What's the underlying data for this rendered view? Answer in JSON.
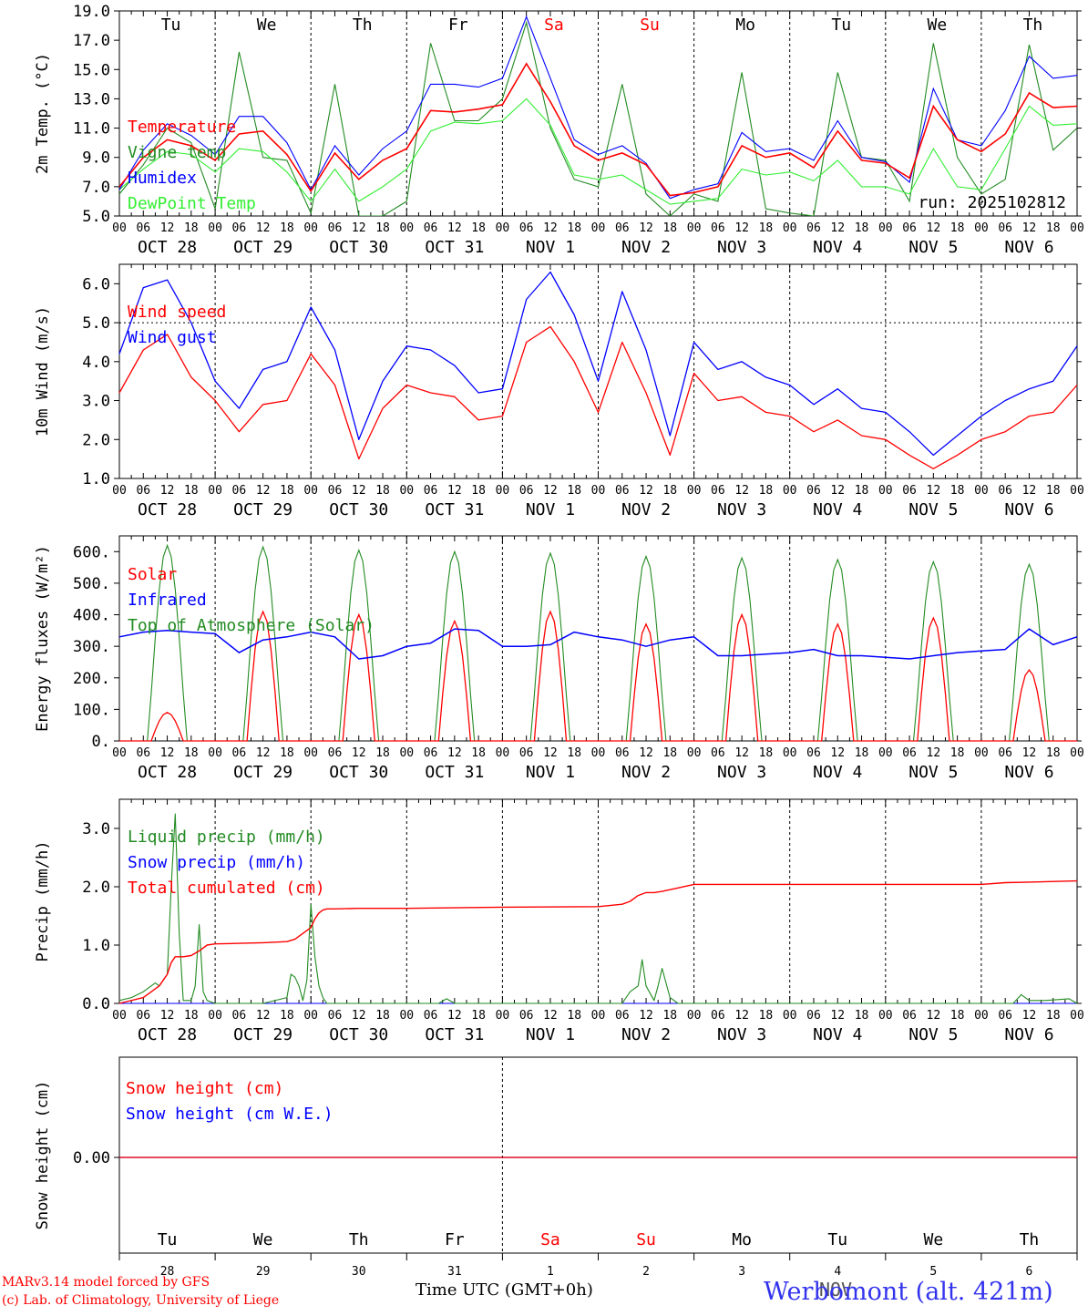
{
  "colors": {
    "red": "#ff0000",
    "green": "#228b22",
    "blue": "#0000ff",
    "lightgreen": "#33ee33",
    "axis": "#000000"
  },
  "days": [
    "Tu",
    "We",
    "Th",
    "Fr",
    "Sa",
    "Su",
    "Mo",
    "Tu",
    "We",
    "Th"
  ],
  "weekend_flags": [
    false,
    false,
    false,
    false,
    true,
    true,
    false,
    false,
    false,
    false
  ],
  "date_labels": [
    "OCT 28",
    "OCT 29",
    "OCT 30",
    "OCT 31",
    "NOV  1",
    "NOV  2",
    "NOV  3",
    "NOV  4",
    "NOV  5",
    "NOV  6"
  ],
  "hour_labels": [
    "00",
    "06",
    "12",
    "18"
  ],
  "end_hour_label": "00",
  "bottom_day_numbers": [
    "28",
    "29",
    "30",
    "31",
    "1",
    "2",
    "3",
    "4",
    "5",
    "6"
  ],
  "bottom_month_label": "NOV",
  "footer": {
    "model": "MARv3.14 model forced by GFS",
    "lab": "(c) Lab. of Climatology, University of Liege",
    "time_axis": "Time UTC (GMT+0h)",
    "station": "Werbomont (alt. 421m)"
  },
  "chart_data": [
    {
      "type": "line",
      "ylabel": "2m Temp. (°C)",
      "ylim": [
        5,
        19
      ],
      "yticks": [
        "19.0",
        "17.0",
        "15.0",
        "13.0",
        "11.0",
        "9.0",
        "7.0",
        "5.0"
      ],
      "ytick_values": [
        19,
        17,
        15,
        13,
        11,
        9,
        7,
        5
      ],
      "run_label": "run: 2025102812",
      "x_hours": [
        0,
        6,
        12,
        18,
        24,
        30,
        36,
        42,
        48,
        54,
        60,
        66,
        72,
        78,
        84,
        90,
        96,
        102,
        108,
        114,
        120,
        126,
        132,
        138,
        144,
        150,
        156,
        162,
        168,
        174,
        180,
        186,
        192,
        198,
        204,
        210,
        216,
        222,
        228,
        234,
        240
      ],
      "series": [
        {
          "name": "Temperature",
          "color": "#ff0000",
          "values": [
            7.0,
            9.0,
            10.2,
            9.8,
            8.8,
            10.6,
            10.8,
            9.2,
            6.7,
            9.3,
            7.5,
            8.8,
            9.6,
            12.2,
            12.1,
            12.3,
            12.6,
            15.4,
            12.8,
            9.8,
            8.8,
            9.3,
            8.5,
            6.4,
            6.6,
            7.0,
            9.8,
            9.0,
            9.3,
            8.3,
            10.8,
            8.8,
            8.6,
            7.6,
            12.5,
            10.2,
            9.4,
            10.6,
            13.4,
            12.4,
            12.5
          ]
        },
        {
          "name": "Vigne temp",
          "color": "#228b22",
          "values": [
            6.5,
            8.5,
            11.0,
            10.0,
            5.5,
            16.2,
            9.0,
            8.8,
            5.2,
            14.0,
            5.0,
            5.0,
            6.0,
            16.8,
            11.5,
            11.5,
            13.0,
            18.2,
            11.0,
            7.5,
            7.0,
            14.0,
            6.5,
            5.0,
            6.5,
            6.0,
            14.8,
            5.5,
            5.2,
            5.0,
            14.8,
            9.0,
            8.8,
            6.0,
            16.8,
            9.0,
            6.5,
            7.5,
            16.7,
            9.5,
            11.0
          ]
        },
        {
          "name": "Humidex",
          "color": "#0000ff",
          "values": [
            6.8,
            9.5,
            11.3,
            10.5,
            9.2,
            11.8,
            11.8,
            10.0,
            6.8,
            9.8,
            7.8,
            9.6,
            10.8,
            14.0,
            14.0,
            13.8,
            14.4,
            18.6,
            14.4,
            10.2,
            9.2,
            9.8,
            8.6,
            6.2,
            6.8,
            7.2,
            10.7,
            9.4,
            9.6,
            8.8,
            11.5,
            9.0,
            8.7,
            7.3,
            13.7,
            10.2,
            9.8,
            12.2,
            15.9,
            14.4,
            14.6
          ]
        },
        {
          "name": "DewPoint Temp",
          "color": "#33ee33",
          "values": [
            6.8,
            8.2,
            9.4,
            9.2,
            8.0,
            9.6,
            9.4,
            8.0,
            6.0,
            8.2,
            6.0,
            7.0,
            8.2,
            10.8,
            11.4,
            11.3,
            11.5,
            13.0,
            11.2,
            7.8,
            7.5,
            7.8,
            6.8,
            5.8,
            6.0,
            6.2,
            8.2,
            7.8,
            8.0,
            7.4,
            8.8,
            7.0,
            7.0,
            6.5,
            9.6,
            7.0,
            6.8,
            9.6,
            12.5,
            11.2,
            11.3
          ]
        }
      ]
    },
    {
      "type": "line",
      "ylabel": "10m Wind (m/s)",
      "ylim": [
        1,
        6.5
      ],
      "yticks": [
        "6.0",
        "5.0",
        "4.0",
        "3.0",
        "2.0",
        "1.0"
      ],
      "ytick_values": [
        6,
        5,
        4,
        3,
        2,
        1
      ],
      "reference_line": 5.0,
      "x_hours": [
        0,
        6,
        12,
        18,
        24,
        30,
        36,
        42,
        48,
        54,
        60,
        66,
        72,
        78,
        84,
        90,
        96,
        102,
        108,
        114,
        120,
        126,
        132,
        138,
        144,
        150,
        156,
        162,
        168,
        174,
        180,
        186,
        192,
        198,
        204,
        210,
        216,
        222,
        228,
        234,
        240
      ],
      "series": [
        {
          "name": "Wind speed",
          "color": "#ff0000",
          "values": [
            3.2,
            4.3,
            4.7,
            3.6,
            3.0,
            2.2,
            2.9,
            3.0,
            4.2,
            3.4,
            1.5,
            2.8,
            3.4,
            3.2,
            3.1,
            2.5,
            2.6,
            4.5,
            4.9,
            4.0,
            2.7,
            4.5,
            3.2,
            1.6,
            3.7,
            3.0,
            3.1,
            2.7,
            2.6,
            2.2,
            2.5,
            2.1,
            2.0,
            1.6,
            1.25,
            1.6,
            2.0,
            2.2,
            2.6,
            2.7,
            3.4
          ]
        },
        {
          "name": "Wind gust",
          "color": "#0000ff",
          "values": [
            4.2,
            5.9,
            6.1,
            5.0,
            3.5,
            2.8,
            3.8,
            4.0,
            5.4,
            4.3,
            2.0,
            3.5,
            4.4,
            4.3,
            3.9,
            3.2,
            3.3,
            5.6,
            6.3,
            5.2,
            3.5,
            5.8,
            4.3,
            2.1,
            4.5,
            3.8,
            4.0,
            3.6,
            3.4,
            2.9,
            3.3,
            2.8,
            2.7,
            2.2,
            1.6,
            2.1,
            2.6,
            3.0,
            3.3,
            3.5,
            4.4
          ]
        }
      ]
    },
    {
      "type": "line",
      "ylabel": "Energy fluxes (W/m²)",
      "ylim": [
        0,
        650
      ],
      "yticks": [
        "600.",
        "500.",
        "400.",
        "300.",
        "200.",
        "100.",
        "0."
      ],
      "ytick_values": [
        600,
        500,
        400,
        300,
        200,
        100,
        0
      ],
      "daily_toa_peaks": [
        620,
        615,
        605,
        600,
        595,
        585,
        580,
        575,
        568,
        560
      ],
      "daily_solar_peaks": [
        90,
        410,
        400,
        380,
        410,
        370,
        400,
        370,
        390,
        225
      ],
      "series": [
        {
          "name": "Solar",
          "color": "#ff0000"
        },
        {
          "name": "Infrared",
          "color": "#0000ff",
          "x_hours": [
            0,
            6,
            12,
            18,
            24,
            30,
            36,
            42,
            48,
            54,
            60,
            66,
            72,
            78,
            84,
            90,
            96,
            102,
            108,
            114,
            120,
            126,
            132,
            138,
            144,
            150,
            156,
            162,
            168,
            174,
            180,
            186,
            192,
            198,
            204,
            210,
            216,
            222,
            228,
            234,
            240
          ],
          "values": [
            330,
            345,
            350,
            345,
            340,
            280,
            320,
            330,
            345,
            330,
            260,
            270,
            300,
            310,
            355,
            350,
            300,
            300,
            305,
            345,
            330,
            320,
            300,
            320,
            330,
            270,
            270,
            275,
            280,
            290,
            270,
            270,
            265,
            260,
            270,
            280,
            285,
            290,
            355,
            305,
            330
          ]
        },
        {
          "name": "Top of Atmosphere (Solar)",
          "color": "#228b22"
        }
      ]
    },
    {
      "type": "line",
      "ylabel": "Precip (mm/h)",
      "ylim": [
        0,
        3.5
      ],
      "yticks": [
        "3.0",
        "2.0",
        "1.0",
        "0.0"
      ],
      "ytick_values": [
        3,
        2,
        1,
        0
      ],
      "series": [
        {
          "name": "Liquid precip (mm/h)",
          "color": "#228b22",
          "x_hours": [
            0,
            3,
            6,
            9,
            10,
            12,
            13,
            14,
            15,
            16,
            18,
            19,
            20,
            21,
            22,
            24,
            36,
            42,
            43,
            44,
            45,
            46,
            47,
            48,
            49,
            50,
            51,
            52,
            54,
            60,
            80,
            82,
            84,
            100,
            126,
            128,
            130,
            131,
            132,
            134,
            135,
            136,
            138,
            140,
            144,
            180,
            224,
            226,
            228,
            232,
            238,
            240
          ],
          "values": [
            0.05,
            0.1,
            0.2,
            0.35,
            0.3,
            0.5,
            2.0,
            3.25,
            1.2,
            0.05,
            0.05,
            0.3,
            1.35,
            0.2,
            0.05,
            0.0,
            0.0,
            0.1,
            0.5,
            0.45,
            0.3,
            0.05,
            0.4,
            1.7,
            0.8,
            0.3,
            0.1,
            0.0,
            0.0,
            0.0,
            0.0,
            0.08,
            0.0,
            0.0,
            0.0,
            0.2,
            0.3,
            0.75,
            0.3,
            0.05,
            0.3,
            0.6,
            0.1,
            0.0,
            0.0,
            0.0,
            0.0,
            0.15,
            0.05,
            0.05,
            0.08,
            0.0
          ]
        },
        {
          "name": "Snow precip (mm/h)",
          "color": "#0000ff",
          "x_hours": [
            0,
            240
          ],
          "values": [
            0,
            0
          ]
        },
        {
          "name": "Total cumulated (cm)",
          "color": "#ff0000",
          "x_hours": [
            0,
            6,
            10,
            12,
            13,
            14,
            15,
            16,
            18,
            20,
            22,
            24,
            30,
            36,
            42,
            44,
            46,
            48,
            49,
            50,
            51,
            52,
            54,
            60,
            72,
            96,
            120,
            126,
            128,
            130,
            132,
            134,
            136,
            140,
            144,
            150,
            168,
            216,
            222,
            228,
            240
          ],
          "values": [
            0.0,
            0.1,
            0.3,
            0.5,
            0.7,
            0.8,
            0.8,
            0.8,
            0.82,
            0.9,
            1.0,
            1.02,
            1.03,
            1.04,
            1.06,
            1.1,
            1.2,
            1.3,
            1.45,
            1.55,
            1.6,
            1.62,
            1.62,
            1.63,
            1.63,
            1.65,
            1.66,
            1.7,
            1.75,
            1.85,
            1.9,
            1.9,
            1.92,
            1.98,
            2.04,
            2.04,
            2.04,
            2.04,
            2.07,
            2.08,
            2.1
          ]
        }
      ]
    },
    {
      "type": "line",
      "ylabel": "Snow height (cm)",
      "yticks": [
        "0.00"
      ],
      "ytick_values": [
        0
      ],
      "series": [
        {
          "name": "Snow height (cm)",
          "color": "#ff0000",
          "x_hours": [
            0,
            240
          ],
          "values": [
            0,
            0
          ]
        },
        {
          "name": "Snow height (cm W.E.)",
          "color": "#0000ff",
          "x_hours": [
            0,
            240
          ],
          "values": [
            0,
            0
          ]
        }
      ]
    }
  ]
}
